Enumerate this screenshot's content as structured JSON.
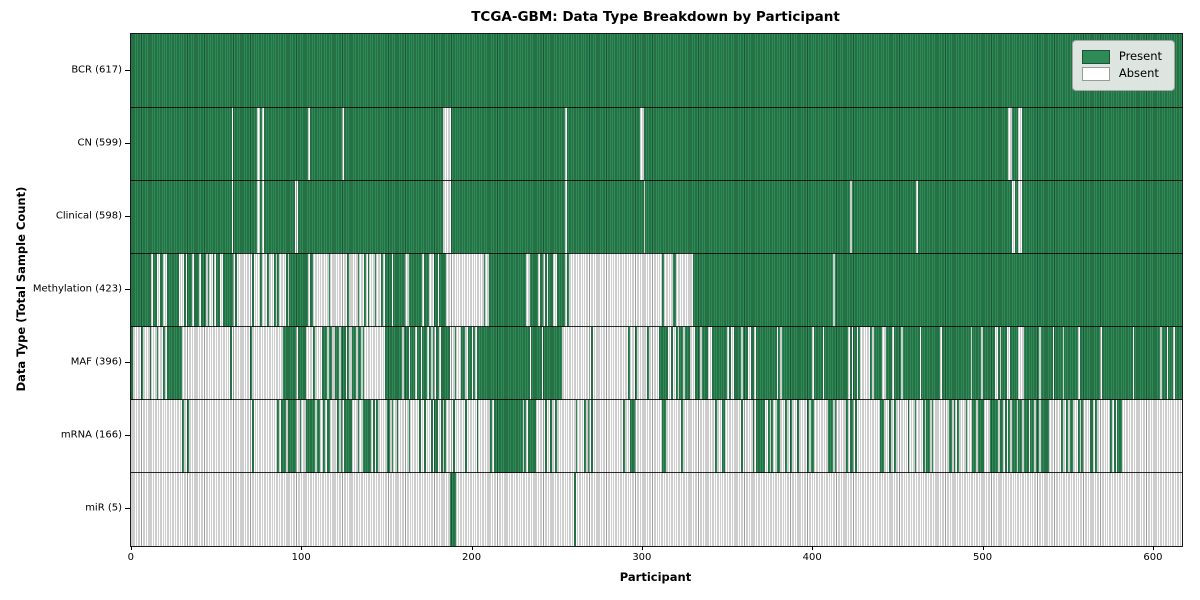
{
  "chart_data": {
    "type": "heatmap",
    "title": "TCGA-GBM: Data Type Breakdown by Participant",
    "xlabel": "Participant",
    "ylabel": "Data Type (Total Sample Count)",
    "x_range": [
      0,
      617
    ],
    "x_ticks": [
      0,
      100,
      200,
      300,
      400,
      500,
      600
    ],
    "grid": false,
    "legend": {
      "position": "upper right",
      "present_label": "Present",
      "absent_label": "Absent"
    },
    "colors": {
      "present": "#2e8b57",
      "absent": "#ffffff",
      "bar_edge": "rgba(0,0,0,0.38)"
    },
    "rows": [
      {
        "label": "BCR (617)",
        "name": "BCR",
        "total": 617,
        "segments": [
          [
            0,
            617,
            1
          ]
        ]
      },
      {
        "label": "CN (599)",
        "name": "CN",
        "total": 599,
        "segments": [
          [
            0,
            59,
            1
          ],
          [
            59,
            60,
            0
          ],
          [
            60,
            74,
            1
          ],
          [
            74,
            76,
            0
          ],
          [
            76,
            77,
            1
          ],
          [
            77,
            78,
            0
          ],
          [
            78,
            104,
            1
          ],
          [
            104,
            105,
            0
          ],
          [
            105,
            124,
            1
          ],
          [
            124,
            125,
            0
          ],
          [
            125,
            183,
            1
          ],
          [
            183,
            188,
            0
          ],
          [
            188,
            255,
            1
          ],
          [
            255,
            256,
            0
          ],
          [
            256,
            299,
            1
          ],
          [
            299,
            301,
            0
          ],
          [
            301,
            515,
            1
          ],
          [
            515,
            517,
            0
          ],
          [
            517,
            521,
            1
          ],
          [
            521,
            523,
            0
          ],
          [
            523,
            617,
            1
          ]
        ]
      },
      {
        "label": "Clinical (598)",
        "name": "Clinical",
        "total": 598,
        "segments": [
          [
            0,
            59,
            1
          ],
          [
            59,
            60,
            0
          ],
          [
            60,
            74,
            1
          ],
          [
            74,
            76,
            0
          ],
          [
            76,
            77,
            1
          ],
          [
            77,
            78,
            0
          ],
          [
            78,
            96,
            1
          ],
          [
            96,
            98,
            0
          ],
          [
            98,
            183,
            1
          ],
          [
            183,
            188,
            0
          ],
          [
            188,
            255,
            1
          ],
          [
            255,
            256,
            0
          ],
          [
            256,
            301,
            1
          ],
          [
            301,
            302,
            0
          ],
          [
            302,
            422,
            1
          ],
          [
            422,
            423,
            0
          ],
          [
            423,
            461,
            1
          ],
          [
            461,
            462,
            0
          ],
          [
            462,
            517,
            1
          ],
          [
            517,
            519,
            0
          ],
          [
            519,
            521,
            1
          ],
          [
            521,
            523,
            0
          ],
          [
            523,
            617,
            1
          ]
        ]
      },
      {
        "label": "Methylation (423)",
        "name": "Methylation",
        "total": 423,
        "segments": [
          [
            0,
            60,
            0.72
          ],
          [
            60,
            93,
            0.25
          ],
          [
            93,
            103,
            1
          ],
          [
            103,
            148,
            0.2
          ],
          [
            148,
            187,
            0.78
          ],
          [
            187,
            210,
            0.08
          ],
          [
            210,
            258,
            0.82
          ],
          [
            258,
            318,
            0.02
          ],
          [
            318,
            320,
            1
          ],
          [
            320,
            330,
            0.02
          ],
          [
            330,
            412,
            1
          ],
          [
            412,
            413,
            0
          ],
          [
            413,
            617,
            1
          ]
        ]
      },
      {
        "label": "MAF (396)",
        "name": "MAF",
        "total": 396,
        "segments": [
          [
            0,
            17,
            0.12
          ],
          [
            17,
            30,
            0.5
          ],
          [
            30,
            89,
            0.05
          ],
          [
            89,
            103,
            0.85
          ],
          [
            103,
            120,
            0.45
          ],
          [
            120,
            135,
            0.7
          ],
          [
            135,
            150,
            0.12
          ],
          [
            150,
            158,
            0.9
          ],
          [
            158,
            187,
            0.65
          ],
          [
            187,
            195,
            0.12
          ],
          [
            195,
            253,
            0.82
          ],
          [
            253,
            257,
            0.25
          ],
          [
            257,
            285,
            0.12
          ],
          [
            285,
            310,
            0.18
          ],
          [
            310,
            323,
            0.8
          ],
          [
            323,
            350,
            0.55
          ],
          [
            350,
            420,
            0.85
          ],
          [
            420,
            436,
            0.5
          ],
          [
            436,
            530,
            0.85
          ],
          [
            530,
            617,
            0.9
          ]
        ]
      },
      {
        "label": "mRNA (166)",
        "name": "mRNA",
        "total": 166,
        "segments": [
          [
            0,
            28,
            0.03
          ],
          [
            28,
            36,
            0.3
          ],
          [
            36,
            88,
            0.03
          ],
          [
            88,
            96,
            0.85
          ],
          [
            96,
            135,
            0.4
          ],
          [
            135,
            155,
            0.35
          ],
          [
            155,
            175,
            0.12
          ],
          [
            175,
            196,
            0.5
          ],
          [
            196,
            211,
            0.15
          ],
          [
            211,
            238,
            0.8
          ],
          [
            238,
            310,
            0.12
          ],
          [
            310,
            365,
            0.18
          ],
          [
            365,
            380,
            0.55
          ],
          [
            380,
            480,
            0.22
          ],
          [
            480,
            545,
            0.5
          ],
          [
            545,
            590,
            0.28
          ],
          [
            590,
            617,
            0.06
          ]
        ]
      },
      {
        "label": "miR (5)",
        "name": "miR",
        "total": 5,
        "segments": [
          [
            0,
            187,
            0
          ],
          [
            187,
            191,
            1
          ],
          [
            191,
            260,
            0
          ],
          [
            260,
            261,
            1
          ],
          [
            261,
            617,
            0
          ]
        ]
      }
    ]
  }
}
